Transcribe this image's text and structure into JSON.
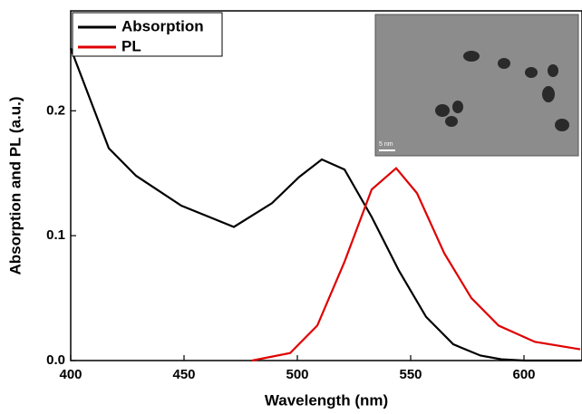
{
  "chart_data": {
    "type": "line",
    "xlabel": "Wavelength (nm)",
    "ylabel": "Absorption and PL (a.u.)",
    "xlim": [
      400,
      625
    ],
    "ylim": [
      0,
      0.28
    ],
    "xticks": [
      400,
      450,
      500,
      550,
      600
    ],
    "yticks": [
      {
        "value": 0,
        "label": "0.0"
      },
      0.1,
      0.2
    ],
    "legend": "upper left",
    "inset_scale_label": "5 nm",
    "series": [
      {
        "name": "Absorption",
        "color": "#000000",
        "x": [
          400,
          416.8,
          428.8,
          448.8,
          472,
          488.8,
          500.8,
          510.8,
          520.8,
          532.8,
          544.8,
          556.8,
          568.8,
          580.8,
          590,
          600,
          625
        ],
        "values": [
          0.25,
          0.17,
          0.148,
          0.124,
          0.107,
          0.126,
          0.147,
          0.161,
          0.153,
          0.115,
          0.072,
          0.035,
          0.013,
          0.004,
          0.001,
          0,
          0
        ]
      },
      {
        "name": "PL",
        "color": "#e00000",
        "x": [
          480,
          496.8,
          508.8,
          520.8,
          532.8,
          543.6,
          552.8,
          564.8,
          576.8,
          588.8,
          604.8,
          624.8
        ],
        "values": [
          0,
          0.006,
          0.028,
          0.079,
          0.137,
          0.154,
          0.134,
          0.086,
          0.05,
          0.028,
          0.015,
          0.009
        ]
      }
    ]
  }
}
